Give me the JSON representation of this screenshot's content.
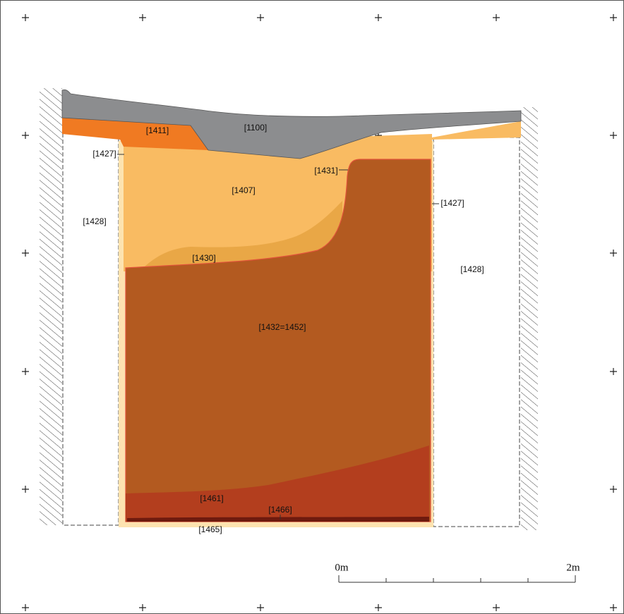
{
  "labels": [
    "[1411]",
    "[1100]",
    "[1427]",
    "[1431]",
    "[1407]",
    "[1427]",
    "[1428]",
    "[1430]",
    "[1428]",
    "[1432=1452]",
    "[1461]",
    "[1466]",
    "[1465]"
  ],
  "scale_bar": {
    "start": "0m",
    "end": "2m"
  }
}
